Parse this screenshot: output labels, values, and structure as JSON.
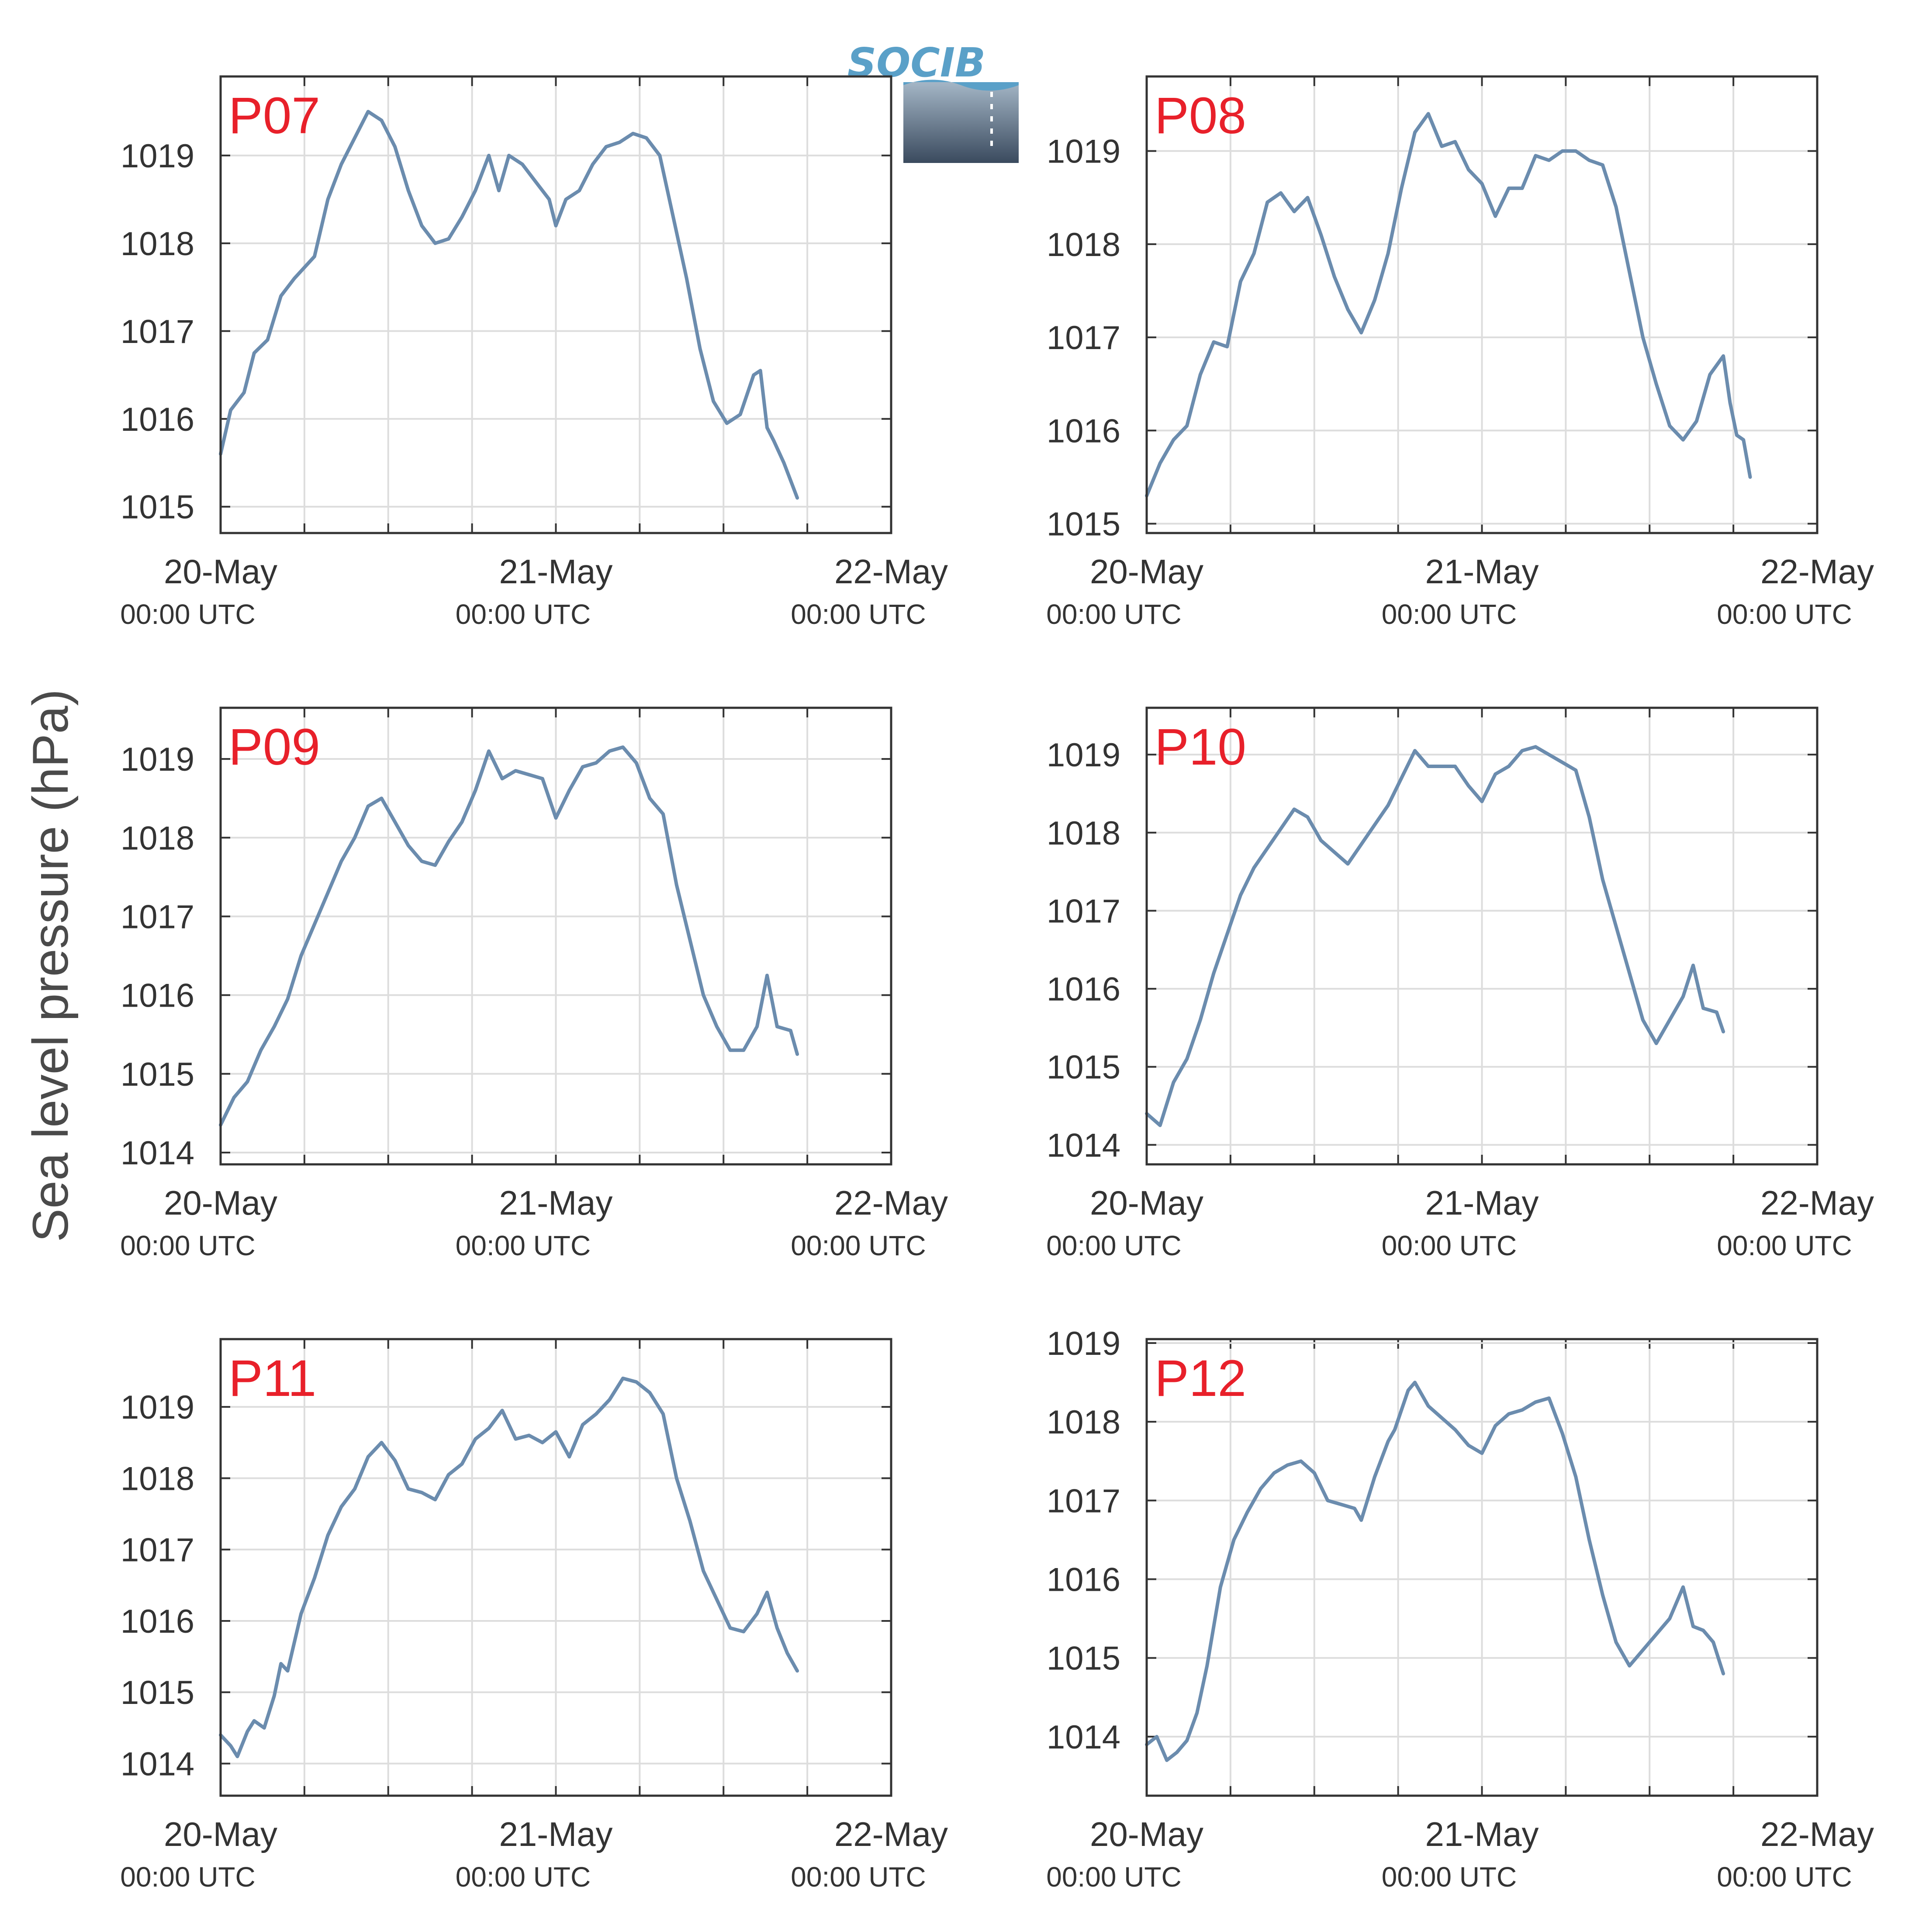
{
  "logo": {
    "text": "SOCIB",
    "color_text": "#5aa0c8",
    "color_dark": "#3a4a5e"
  },
  "ylabel": "Sea level pressure (hPa)",
  "colors": {
    "line": "#6b8cae",
    "label": "#e8202a",
    "grid": "#dddddd",
    "axis": "#333333"
  },
  "x_ticks": [
    {
      "day": 0,
      "date": "20-May",
      "time": "00:00 UTC"
    },
    {
      "day": 1,
      "date": "21-May",
      "time": "00:00 UTC"
    },
    {
      "day": 2,
      "date": "22-May",
      "time": "00:00 UTC"
    }
  ],
  "chart_data": [
    {
      "type": "line",
      "station": "P07",
      "xlim_days": [
        0,
        2
      ],
      "ylim": [
        1014.7,
        1019.9
      ],
      "yticks": [
        1015,
        1016,
        1017,
        1018,
        1019
      ],
      "x_unit": "days since 20-May 00:00 UTC",
      "y_unit": "hPa",
      "points": [
        [
          0,
          1015.6
        ],
        [
          0.03,
          1016.1
        ],
        [
          0.07,
          1016.3
        ],
        [
          0.1,
          1016.75
        ],
        [
          0.14,
          1016.9
        ],
        [
          0.18,
          1017.4
        ],
        [
          0.22,
          1017.6
        ],
        [
          0.28,
          1017.85
        ],
        [
          0.32,
          1018.5
        ],
        [
          0.36,
          1018.9
        ],
        [
          0.4,
          1019.2
        ],
        [
          0.44,
          1019.5
        ],
        [
          0.48,
          1019.4
        ],
        [
          0.52,
          1019.1
        ],
        [
          0.56,
          1018.6
        ],
        [
          0.6,
          1018.2
        ],
        [
          0.64,
          1018.0
        ],
        [
          0.68,
          1018.05
        ],
        [
          0.72,
          1018.3
        ],
        [
          0.76,
          1018.6
        ],
        [
          0.8,
          1019.0
        ],
        [
          0.83,
          1018.6
        ],
        [
          0.86,
          1019.0
        ],
        [
          0.9,
          1018.9
        ],
        [
          0.94,
          1018.7
        ],
        [
          0.98,
          1018.5
        ],
        [
          1.0,
          1018.2
        ],
        [
          1.03,
          1018.5
        ],
        [
          1.07,
          1018.6
        ],
        [
          1.11,
          1018.9
        ],
        [
          1.15,
          1019.1
        ],
        [
          1.19,
          1019.15
        ],
        [
          1.23,
          1019.25
        ],
        [
          1.27,
          1019.2
        ],
        [
          1.31,
          1019.0
        ],
        [
          1.35,
          1018.3
        ],
        [
          1.39,
          1017.6
        ],
        [
          1.43,
          1016.8
        ],
        [
          1.47,
          1016.2
        ],
        [
          1.51,
          1015.95
        ],
        [
          1.55,
          1016.05
        ],
        [
          1.59,
          1016.5
        ],
        [
          1.61,
          1016.55
        ],
        [
          1.63,
          1015.9
        ],
        [
          1.65,
          1015.75
        ],
        [
          1.68,
          1015.5
        ],
        [
          1.7,
          1015.3
        ],
        [
          1.72,
          1015.1
        ]
      ]
    },
    {
      "type": "line",
      "station": "P08",
      "xlim_days": [
        0,
        2
      ],
      "ylim": [
        1014.9,
        1019.8
      ],
      "yticks": [
        1015,
        1016,
        1017,
        1018,
        1019
      ],
      "x_unit": "days since 20-May 00:00 UTC",
      "y_unit": "hPa",
      "points": [
        [
          0,
          1015.3
        ],
        [
          0.04,
          1015.65
        ],
        [
          0.08,
          1015.9
        ],
        [
          0.12,
          1016.05
        ],
        [
          0.16,
          1016.6
        ],
        [
          0.2,
          1016.95
        ],
        [
          0.24,
          1016.9
        ],
        [
          0.28,
          1017.6
        ],
        [
          0.32,
          1017.9
        ],
        [
          0.36,
          1018.45
        ],
        [
          0.4,
          1018.55
        ],
        [
          0.44,
          1018.35
        ],
        [
          0.48,
          1018.5
        ],
        [
          0.52,
          1018.1
        ],
        [
          0.56,
          1017.65
        ],
        [
          0.6,
          1017.3
        ],
        [
          0.64,
          1017.05
        ],
        [
          0.68,
          1017.4
        ],
        [
          0.72,
          1017.9
        ],
        [
          0.76,
          1018.6
        ],
        [
          0.8,
          1019.2
        ],
        [
          0.84,
          1019.4
        ],
        [
          0.88,
          1019.05
        ],
        [
          0.92,
          1019.1
        ],
        [
          0.96,
          1018.8
        ],
        [
          1.0,
          1018.65
        ],
        [
          1.04,
          1018.3
        ],
        [
          1.08,
          1018.6
        ],
        [
          1.12,
          1018.6
        ],
        [
          1.16,
          1018.95
        ],
        [
          1.2,
          1018.9
        ],
        [
          1.24,
          1019.0
        ],
        [
          1.28,
          1019.0
        ],
        [
          1.32,
          1018.9
        ],
        [
          1.36,
          1018.85
        ],
        [
          1.4,
          1018.4
        ],
        [
          1.44,
          1017.7
        ],
        [
          1.48,
          1017.0
        ],
        [
          1.52,
          1016.5
        ],
        [
          1.56,
          1016.05
        ],
        [
          1.6,
          1015.9
        ],
        [
          1.64,
          1016.1
        ],
        [
          1.68,
          1016.6
        ],
        [
          1.72,
          1016.8
        ],
        [
          1.74,
          1016.3
        ],
        [
          1.76,
          1015.95
        ],
        [
          1.78,
          1015.9
        ],
        [
          1.8,
          1015.5
        ]
      ]
    },
    {
      "type": "line",
      "station": "P09",
      "xlim_days": [
        0,
        2
      ],
      "ylim": [
        1013.85,
        1019.65
      ],
      "yticks": [
        1014,
        1015,
        1016,
        1017,
        1018,
        1019
      ],
      "x_unit": "days since 20-May 00:00 UTC",
      "y_unit": "hPa",
      "points": [
        [
          0,
          1014.35
        ],
        [
          0.04,
          1014.7
        ],
        [
          0.08,
          1014.9
        ],
        [
          0.12,
          1015.3
        ],
        [
          0.16,
          1015.6
        ],
        [
          0.2,
          1015.95
        ],
        [
          0.24,
          1016.5
        ],
        [
          0.28,
          1016.9
        ],
        [
          0.32,
          1017.3
        ],
        [
          0.36,
          1017.7
        ],
        [
          0.4,
          1018.0
        ],
        [
          0.44,
          1018.4
        ],
        [
          0.48,
          1018.5
        ],
        [
          0.52,
          1018.2
        ],
        [
          0.56,
          1017.9
        ],
        [
          0.6,
          1017.7
        ],
        [
          0.64,
          1017.65
        ],
        [
          0.68,
          1017.95
        ],
        [
          0.72,
          1018.2
        ],
        [
          0.76,
          1018.6
        ],
        [
          0.8,
          1019.1
        ],
        [
          0.84,
          1018.75
        ],
        [
          0.88,
          1018.85
        ],
        [
          0.92,
          1018.8
        ],
        [
          0.96,
          1018.75
        ],
        [
          1.0,
          1018.25
        ],
        [
          1.04,
          1018.6
        ],
        [
          1.08,
          1018.9
        ],
        [
          1.12,
          1018.95
        ],
        [
          1.16,
          1019.1
        ],
        [
          1.2,
          1019.15
        ],
        [
          1.24,
          1018.95
        ],
        [
          1.28,
          1018.5
        ],
        [
          1.32,
          1018.3
        ],
        [
          1.36,
          1017.4
        ],
        [
          1.4,
          1016.7
        ],
        [
          1.44,
          1016.0
        ],
        [
          1.48,
          1015.6
        ],
        [
          1.52,
          1015.3
        ],
        [
          1.56,
          1015.3
        ],
        [
          1.6,
          1015.6
        ],
        [
          1.63,
          1016.25
        ],
        [
          1.66,
          1015.6
        ],
        [
          1.7,
          1015.55
        ],
        [
          1.72,
          1015.25
        ]
      ]
    },
    {
      "type": "line",
      "station": "P10",
      "xlim_days": [
        0,
        2
      ],
      "ylim": [
        1013.75,
        1019.6
      ],
      "yticks": [
        1014,
        1015,
        1016,
        1017,
        1018,
        1019
      ],
      "x_unit": "days since 20-May 00:00 UTC",
      "y_unit": "hPa",
      "points": [
        [
          0,
          1014.4
        ],
        [
          0.04,
          1014.25
        ],
        [
          0.08,
          1014.8
        ],
        [
          0.12,
          1015.1
        ],
        [
          0.16,
          1015.6
        ],
        [
          0.2,
          1016.2
        ],
        [
          0.24,
          1016.7
        ],
        [
          0.28,
          1017.2
        ],
        [
          0.32,
          1017.55
        ],
        [
          0.36,
          1017.8
        ],
        [
          0.4,
          1018.05
        ],
        [
          0.44,
          1018.3
        ],
        [
          0.48,
          1018.2
        ],
        [
          0.52,
          1017.9
        ],
        [
          0.56,
          1017.75
        ],
        [
          0.6,
          1017.6
        ],
        [
          0.64,
          1017.85
        ],
        [
          0.68,
          1018.1
        ],
        [
          0.72,
          1018.35
        ],
        [
          0.76,
          1018.7
        ],
        [
          0.8,
          1019.05
        ],
        [
          0.84,
          1018.85
        ],
        [
          0.88,
          1018.85
        ],
        [
          0.92,
          1018.85
        ],
        [
          0.96,
          1018.6
        ],
        [
          1.0,
          1018.4
        ],
        [
          1.04,
          1018.75
        ],
        [
          1.08,
          1018.85
        ],
        [
          1.12,
          1019.05
        ],
        [
          1.16,
          1019.1
        ],
        [
          1.2,
          1019.0
        ],
        [
          1.24,
          1018.9
        ],
        [
          1.28,
          1018.8
        ],
        [
          1.32,
          1018.2
        ],
        [
          1.36,
          1017.4
        ],
        [
          1.4,
          1016.8
        ],
        [
          1.44,
          1016.2
        ],
        [
          1.48,
          1015.6
        ],
        [
          1.52,
          1015.3
        ],
        [
          1.56,
          1015.6
        ],
        [
          1.6,
          1015.9
        ],
        [
          1.63,
          1016.3
        ],
        [
          1.66,
          1015.75
        ],
        [
          1.7,
          1015.7
        ],
        [
          1.72,
          1015.45
        ]
      ]
    },
    {
      "type": "line",
      "station": "P11",
      "xlim_days": [
        0,
        2
      ],
      "ylim": [
        1013.55,
        1019.95
      ],
      "yticks": [
        1014,
        1015,
        1016,
        1017,
        1018,
        1019
      ],
      "x_unit": "days since 20-May 00:00 UTC",
      "y_unit": "hPa",
      "points": [
        [
          0,
          1014.4
        ],
        [
          0.03,
          1014.25
        ],
        [
          0.05,
          1014.1
        ],
        [
          0.08,
          1014.45
        ],
        [
          0.1,
          1014.6
        ],
        [
          0.13,
          1014.5
        ],
        [
          0.16,
          1014.95
        ],
        [
          0.18,
          1015.4
        ],
        [
          0.2,
          1015.3
        ],
        [
          0.24,
          1016.1
        ],
        [
          0.28,
          1016.6
        ],
        [
          0.32,
          1017.2
        ],
        [
          0.36,
          1017.6
        ],
        [
          0.4,
          1017.85
        ],
        [
          0.44,
          1018.3
        ],
        [
          0.48,
          1018.5
        ],
        [
          0.52,
          1018.25
        ],
        [
          0.56,
          1017.85
        ],
        [
          0.6,
          1017.8
        ],
        [
          0.64,
          1017.7
        ],
        [
          0.68,
          1018.05
        ],
        [
          0.72,
          1018.2
        ],
        [
          0.76,
          1018.55
        ],
        [
          0.8,
          1018.7
        ],
        [
          0.84,
          1018.95
        ],
        [
          0.88,
          1018.55
        ],
        [
          0.92,
          1018.6
        ],
        [
          0.96,
          1018.5
        ],
        [
          1.0,
          1018.65
        ],
        [
          1.04,
          1018.3
        ],
        [
          1.08,
          1018.75
        ],
        [
          1.12,
          1018.9
        ],
        [
          1.16,
          1019.1
        ],
        [
          1.2,
          1019.4
        ],
        [
          1.24,
          1019.35
        ],
        [
          1.28,
          1019.2
        ],
        [
          1.32,
          1018.9
        ],
        [
          1.36,
          1018.0
        ],
        [
          1.4,
          1017.4
        ],
        [
          1.44,
          1016.7
        ],
        [
          1.48,
          1016.3
        ],
        [
          1.52,
          1015.9
        ],
        [
          1.56,
          1015.85
        ],
        [
          1.6,
          1016.1
        ],
        [
          1.63,
          1016.4
        ],
        [
          1.66,
          1015.9
        ],
        [
          1.69,
          1015.55
        ],
        [
          1.72,
          1015.3
        ]
      ]
    },
    {
      "type": "line",
      "station": "P12",
      "xlim_days": [
        0,
        2
      ],
      "ylim": [
        1013.25,
        1019.05
      ],
      "yticks": [
        1014,
        1015,
        1016,
        1017,
        1018,
        1019
      ],
      "x_unit": "days since 20-May 00:00 UTC",
      "y_unit": "hPa",
      "points": [
        [
          0,
          1013.9
        ],
        [
          0.03,
          1014.0
        ],
        [
          0.06,
          1013.7
        ],
        [
          0.09,
          1013.8
        ],
        [
          0.12,
          1013.95
        ],
        [
          0.15,
          1014.3
        ],
        [
          0.18,
          1014.9
        ],
        [
          0.22,
          1015.9
        ],
        [
          0.26,
          1016.5
        ],
        [
          0.3,
          1016.85
        ],
        [
          0.34,
          1017.15
        ],
        [
          0.38,
          1017.35
        ],
        [
          0.42,
          1017.45
        ],
        [
          0.46,
          1017.5
        ],
        [
          0.5,
          1017.35
        ],
        [
          0.54,
          1017.0
        ],
        [
          0.58,
          1016.95
        ],
        [
          0.62,
          1016.9
        ],
        [
          0.64,
          1016.75
        ],
        [
          0.68,
          1017.3
        ],
        [
          0.72,
          1017.75
        ],
        [
          0.74,
          1017.9
        ],
        [
          0.78,
          1018.4
        ],
        [
          0.8,
          1018.5
        ],
        [
          0.84,
          1018.2
        ],
        [
          0.88,
          1018.05
        ],
        [
          0.92,
          1017.9
        ],
        [
          0.96,
          1017.7
        ],
        [
          1.0,
          1017.6
        ],
        [
          1.04,
          1017.95
        ],
        [
          1.08,
          1018.1
        ],
        [
          1.12,
          1018.15
        ],
        [
          1.16,
          1018.25
        ],
        [
          1.2,
          1018.3
        ],
        [
          1.24,
          1017.85
        ],
        [
          1.28,
          1017.3
        ],
        [
          1.32,
          1016.5
        ],
        [
          1.36,
          1015.8
        ],
        [
          1.4,
          1015.2
        ],
        [
          1.44,
          1014.9
        ],
        [
          1.48,
          1015.1
        ],
        [
          1.52,
          1015.3
        ],
        [
          1.56,
          1015.5
        ],
        [
          1.6,
          1015.9
        ],
        [
          1.63,
          1015.4
        ],
        [
          1.66,
          1015.35
        ],
        [
          1.69,
          1015.2
        ],
        [
          1.72,
          1014.8
        ]
      ]
    }
  ]
}
